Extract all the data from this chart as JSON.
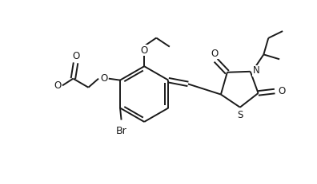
{
  "background": "#ffffff",
  "line_color": "#1a1a1a",
  "line_width": 1.4,
  "font_size": 8.5,
  "fig_width": 3.96,
  "fig_height": 2.31,
  "dpi": 100,
  "xlim": [
    0,
    10
  ],
  "ylim": [
    0,
    5.83
  ]
}
